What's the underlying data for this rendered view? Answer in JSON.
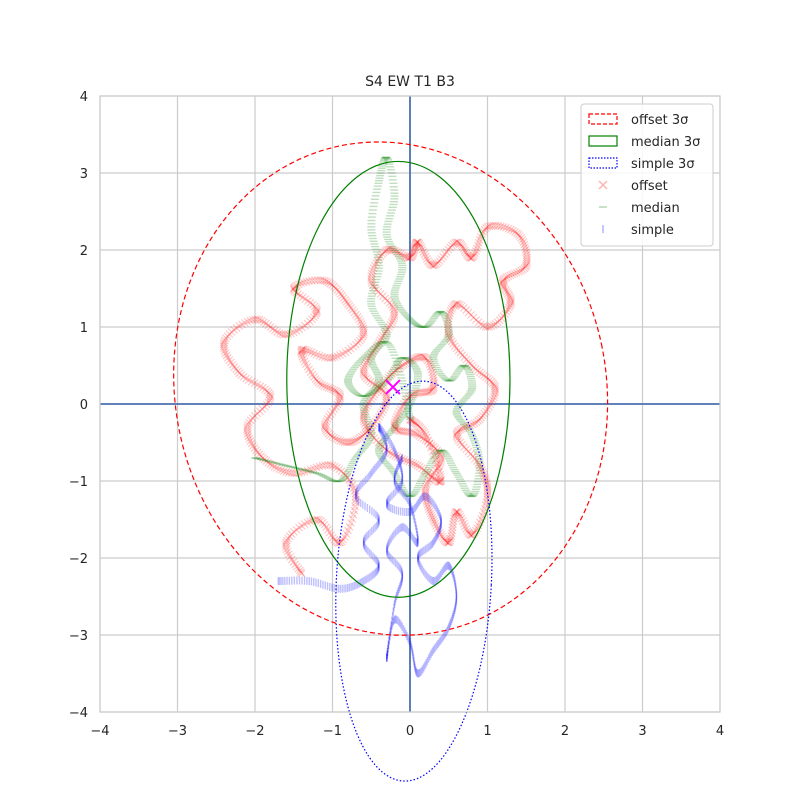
{
  "chart_data": {
    "type": "scatter",
    "title": "S4 EW T1 B3",
    "xlabel": "",
    "ylabel": "",
    "xlim": [
      -4,
      4
    ],
    "ylim": [
      -4,
      4
    ],
    "xticks": [
      -4,
      -3,
      -2,
      -1,
      0,
      1,
      2,
      3,
      4
    ],
    "yticks": [
      -4,
      -3,
      -2,
      -1,
      0,
      1,
      2,
      3,
      4
    ],
    "grid": true,
    "legend_position": "top-right",
    "colors": {
      "offset": "#ff0000",
      "median": "#008000",
      "simple": "#0000ff",
      "center_marker": "#ff00ff",
      "axis_lines": "#4c72b0",
      "grid": "#cccccc"
    },
    "ellipses": [
      {
        "name": "offset 3σ",
        "style": "dashed",
        "color": "#ff0000",
        "center": [
          -0.25,
          0.2
        ],
        "semi_axes": [
          2.78,
          3.22
        ],
        "rotation_deg": 12
      },
      {
        "name": "median 3σ",
        "style": "solid",
        "color": "#008000",
        "center": [
          -0.15,
          0.32
        ],
        "semi_axes": [
          1.44,
          2.83
        ],
        "rotation_deg": 0
      },
      {
        "name": "simple 3σ",
        "style": "dotted",
        "color": "#0000ff",
        "center": [
          0.05,
          -2.3
        ],
        "semi_axes": [
          1.0,
          2.6
        ],
        "rotation_deg": -3
      }
    ],
    "center_marker": {
      "x": -0.22,
      "y": 0.22
    },
    "series": [
      {
        "name": "offset",
        "marker": "x",
        "path": [
          [
            -1.4,
            -2.2
          ],
          [
            -1.6,
            -1.8
          ],
          [
            -1.2,
            -1.5
          ],
          [
            -0.9,
            -1.8
          ],
          [
            -0.7,
            -1.2
          ],
          [
            -1.0,
            -0.8
          ],
          [
            -1.5,
            -0.9
          ],
          [
            -1.9,
            -0.7
          ],
          [
            -2.1,
            -0.3
          ],
          [
            -1.8,
            0.1
          ],
          [
            -2.2,
            0.4
          ],
          [
            -2.4,
            0.8
          ],
          [
            -2.0,
            1.1
          ],
          [
            -1.6,
            0.9
          ],
          [
            -1.2,
            1.2
          ],
          [
            -1.5,
            1.5
          ],
          [
            -1.1,
            1.6
          ],
          [
            -0.8,
            1.3
          ],
          [
            -0.6,
            0.9
          ],
          [
            -1.0,
            0.6
          ],
          [
            -1.4,
            0.7
          ],
          [
            -1.2,
            0.3
          ],
          [
            -0.9,
            0.1
          ],
          [
            -1.1,
            -0.3
          ],
          [
            -0.8,
            -0.5
          ],
          [
            -0.5,
            -0.3
          ],
          [
            -0.3,
            0.1
          ],
          [
            -0.6,
            0.4
          ],
          [
            -0.4,
            0.8
          ],
          [
            -0.2,
            1.2
          ],
          [
            -0.5,
            1.6
          ],
          [
            -0.3,
            2.0
          ],
          [
            0.0,
            1.9
          ],
          [
            0.1,
            2.1
          ],
          [
            0.3,
            1.8
          ],
          [
            0.6,
            2.1
          ],
          [
            0.8,
            1.9
          ],
          [
            1.0,
            2.3
          ],
          [
            1.4,
            2.2
          ],
          [
            1.5,
            1.8
          ],
          [
            1.2,
            1.6
          ],
          [
            1.3,
            1.3
          ],
          [
            1.0,
            1.0
          ],
          [
            0.6,
            1.3
          ],
          [
            0.5,
            0.9
          ],
          [
            0.8,
            0.5
          ],
          [
            1.1,
            0.2
          ],
          [
            0.9,
            -0.2
          ],
          [
            0.6,
            -0.4
          ],
          [
            0.9,
            -0.8
          ],
          [
            1.0,
            -1.2
          ],
          [
            0.8,
            -1.7
          ],
          [
            0.6,
            -1.4
          ],
          [
            0.5,
            -1.8
          ],
          [
            0.3,
            -1.5
          ],
          [
            0.2,
            -1.1
          ],
          [
            0.4,
            -0.7
          ],
          [
            0.1,
            -0.4
          ],
          [
            -0.2,
            -0.3
          ],
          [
            0.0,
            0.1
          ],
          [
            0.3,
            0.2
          ],
          [
            0.2,
            0.6
          ],
          [
            -0.1,
            0.5
          ],
          [
            -0.4,
            0.2
          ],
          [
            -0.6,
            -0.2
          ],
          [
            -0.3,
            -0.6
          ],
          [
            0.1,
            -0.8
          ],
          [
            0.4,
            -1.0
          ],
          [
            0.2,
            -0.4
          ],
          [
            0.0,
            -0.2
          ]
        ]
      },
      {
        "name": "median",
        "marker": "_",
        "path": [
          [
            -2.0,
            -0.7
          ],
          [
            -1.6,
            -0.8
          ],
          [
            -1.2,
            -0.9
          ],
          [
            -0.9,
            -1.0
          ],
          [
            -0.7,
            -0.7
          ],
          [
            -0.5,
            -0.4
          ],
          [
            -0.6,
            0.0
          ],
          [
            -0.4,
            0.3
          ],
          [
            -0.5,
            0.6
          ],
          [
            -0.3,
            0.9
          ],
          [
            -0.5,
            1.3
          ],
          [
            -0.4,
            1.8
          ],
          [
            -0.5,
            2.3
          ],
          [
            -0.4,
            2.9
          ],
          [
            -0.3,
            3.2
          ],
          [
            -0.2,
            2.7
          ],
          [
            -0.3,
            2.2
          ],
          [
            -0.1,
            1.8
          ],
          [
            -0.2,
            1.4
          ],
          [
            0.0,
            1.1
          ],
          [
            0.2,
            1.0
          ],
          [
            0.4,
            1.2
          ],
          [
            0.5,
            0.9
          ],
          [
            0.3,
            0.6
          ],
          [
            0.5,
            0.3
          ],
          [
            0.7,
            0.5
          ],
          [
            0.8,
            0.2
          ],
          [
            0.6,
            -0.1
          ],
          [
            0.8,
            -0.4
          ],
          [
            0.9,
            -0.8
          ],
          [
            0.8,
            -1.2
          ],
          [
            0.6,
            -0.9
          ],
          [
            0.4,
            -0.6
          ],
          [
            0.2,
            -0.9
          ],
          [
            0.0,
            -1.2
          ],
          [
            -0.2,
            -0.9
          ],
          [
            -0.4,
            -0.6
          ],
          [
            -0.2,
            -0.3
          ],
          [
            0.0,
            0.0
          ],
          [
            0.1,
            0.4
          ],
          [
            -0.1,
            0.6
          ],
          [
            -0.3,
            0.3
          ],
          [
            -0.6,
            0.1
          ],
          [
            -0.8,
            0.3
          ],
          [
            -0.6,
            0.6
          ],
          [
            -0.3,
            0.8
          ],
          [
            -0.1,
            0.3
          ],
          [
            0.0,
            -0.2
          ]
        ]
      },
      {
        "name": "simple",
        "marker": "|",
        "path": [
          [
            -1.7,
            -2.3
          ],
          [
            -1.3,
            -2.3
          ],
          [
            -0.9,
            -2.4
          ],
          [
            -0.6,
            -2.3
          ],
          [
            -0.4,
            -2.1
          ],
          [
            -0.6,
            -1.8
          ],
          [
            -0.4,
            -1.5
          ],
          [
            -0.7,
            -1.2
          ],
          [
            -0.5,
            -0.9
          ],
          [
            -0.3,
            -0.6
          ],
          [
            -0.4,
            -0.3
          ],
          [
            -0.2,
            -0.6
          ],
          [
            -0.1,
            -1.0
          ],
          [
            -0.3,
            -1.3
          ],
          [
            0.0,
            -1.4
          ],
          [
            0.2,
            -1.2
          ],
          [
            0.4,
            -1.5
          ],
          [
            0.3,
            -1.8
          ],
          [
            0.1,
            -2.0
          ],
          [
            0.3,
            -2.3
          ],
          [
            0.5,
            -2.1
          ],
          [
            0.6,
            -2.5
          ],
          [
            0.5,
            -2.9
          ],
          [
            0.3,
            -3.2
          ],
          [
            0.1,
            -3.5
          ],
          [
            0.0,
            -3.1
          ],
          [
            -0.2,
            -2.8
          ],
          [
            -0.3,
            -3.3
          ],
          [
            -0.2,
            -2.6
          ],
          [
            -0.1,
            -2.2
          ],
          [
            -0.3,
            -1.9
          ],
          [
            -0.1,
            -1.6
          ],
          [
            0.1,
            -1.8
          ],
          [
            0.0,
            -1.3
          ],
          [
            -0.2,
            -1.0
          ],
          [
            -0.1,
            -0.7
          ]
        ]
      }
    ],
    "legend": [
      {
        "label": "offset 3σ",
        "kind": "ellipse-dashed",
        "color": "#ff0000"
      },
      {
        "label": "median 3σ",
        "kind": "ellipse-solid",
        "color": "#008000"
      },
      {
        "label": "simple 3σ",
        "kind": "ellipse-dotted",
        "color": "#0000ff"
      },
      {
        "label": "offset",
        "kind": "x",
        "color": "#ff0000"
      },
      {
        "label": "median",
        "kind": "_",
        "color": "#008000"
      },
      {
        "label": "simple",
        "kind": "|",
        "color": "#0000ff"
      }
    ]
  }
}
